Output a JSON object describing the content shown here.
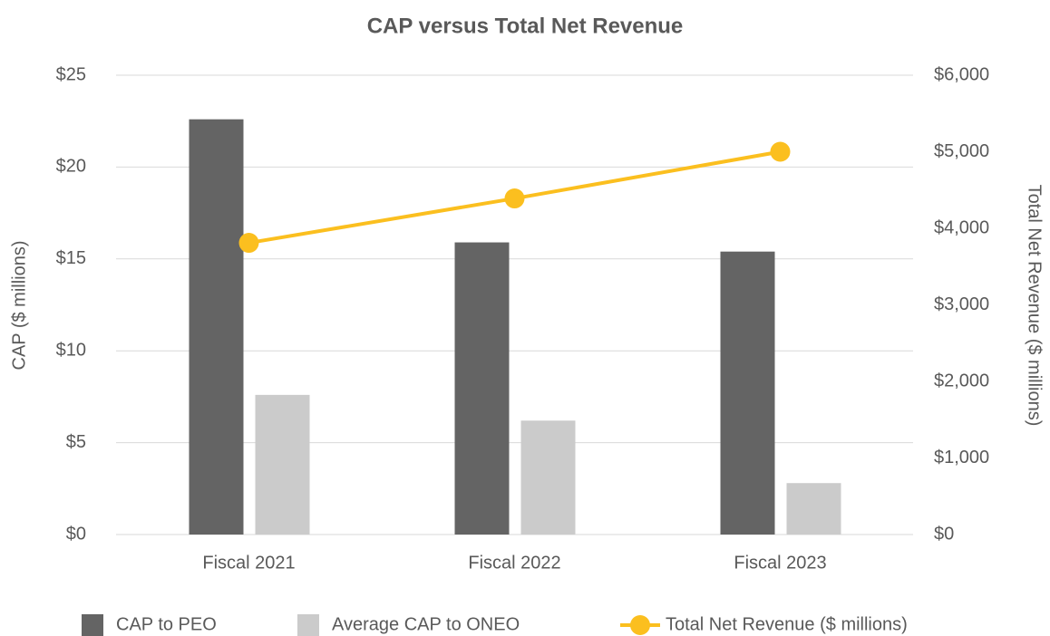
{
  "chart_data": {
    "type": "bar_line",
    "title": "CAP versus Total Net Revenue",
    "categories": [
      "Fiscal 2021",
      "Fiscal 2022",
      "Fiscal 2023"
    ],
    "y_label": "CAP ($ millions)",
    "y2_label": "Total Net Revenue ($ millions)",
    "series": [
      {
        "name": "CAP to PEO",
        "color": "#646464",
        "type": "bar",
        "values": [
          22.6,
          15.9,
          15.4
        ]
      },
      {
        "name": "Average CAP to ONEO",
        "color": "#cbcbcb",
        "type": "bar",
        "values": [
          7.6,
          6.2,
          2.8
        ]
      },
      {
        "name": "Total Net Revenue ($ millions)",
        "color": "#fbbf1f",
        "type": "line",
        "axis": "y2",
        "values": [
          3810,
          4390,
          5000
        ]
      }
    ],
    "ylim": [
      0,
      25
    ],
    "yticks": [
      {
        "value": 0,
        "label": "$0"
      },
      {
        "value": 5,
        "label": "$5"
      },
      {
        "value": 10,
        "label": "$10"
      },
      {
        "value": 15,
        "label": "$15"
      },
      {
        "value": 20,
        "label": "$20"
      },
      {
        "value": 25,
        "label": "$25"
      }
    ],
    "y2lim": [
      0,
      6000
    ],
    "y2ticks": [
      {
        "value": 0,
        "label": "$0"
      },
      {
        "value": 1000,
        "label": "$1,000"
      },
      {
        "value": 2000,
        "label": "$2,000"
      },
      {
        "value": 3000,
        "label": "$3,000"
      },
      {
        "value": 4000,
        "label": "$4,000"
      },
      {
        "value": 5000,
        "label": "$5,000"
      },
      {
        "value": 6000,
        "label": "$6,000"
      }
    ],
    "grid": true,
    "legend": "bottom"
  }
}
